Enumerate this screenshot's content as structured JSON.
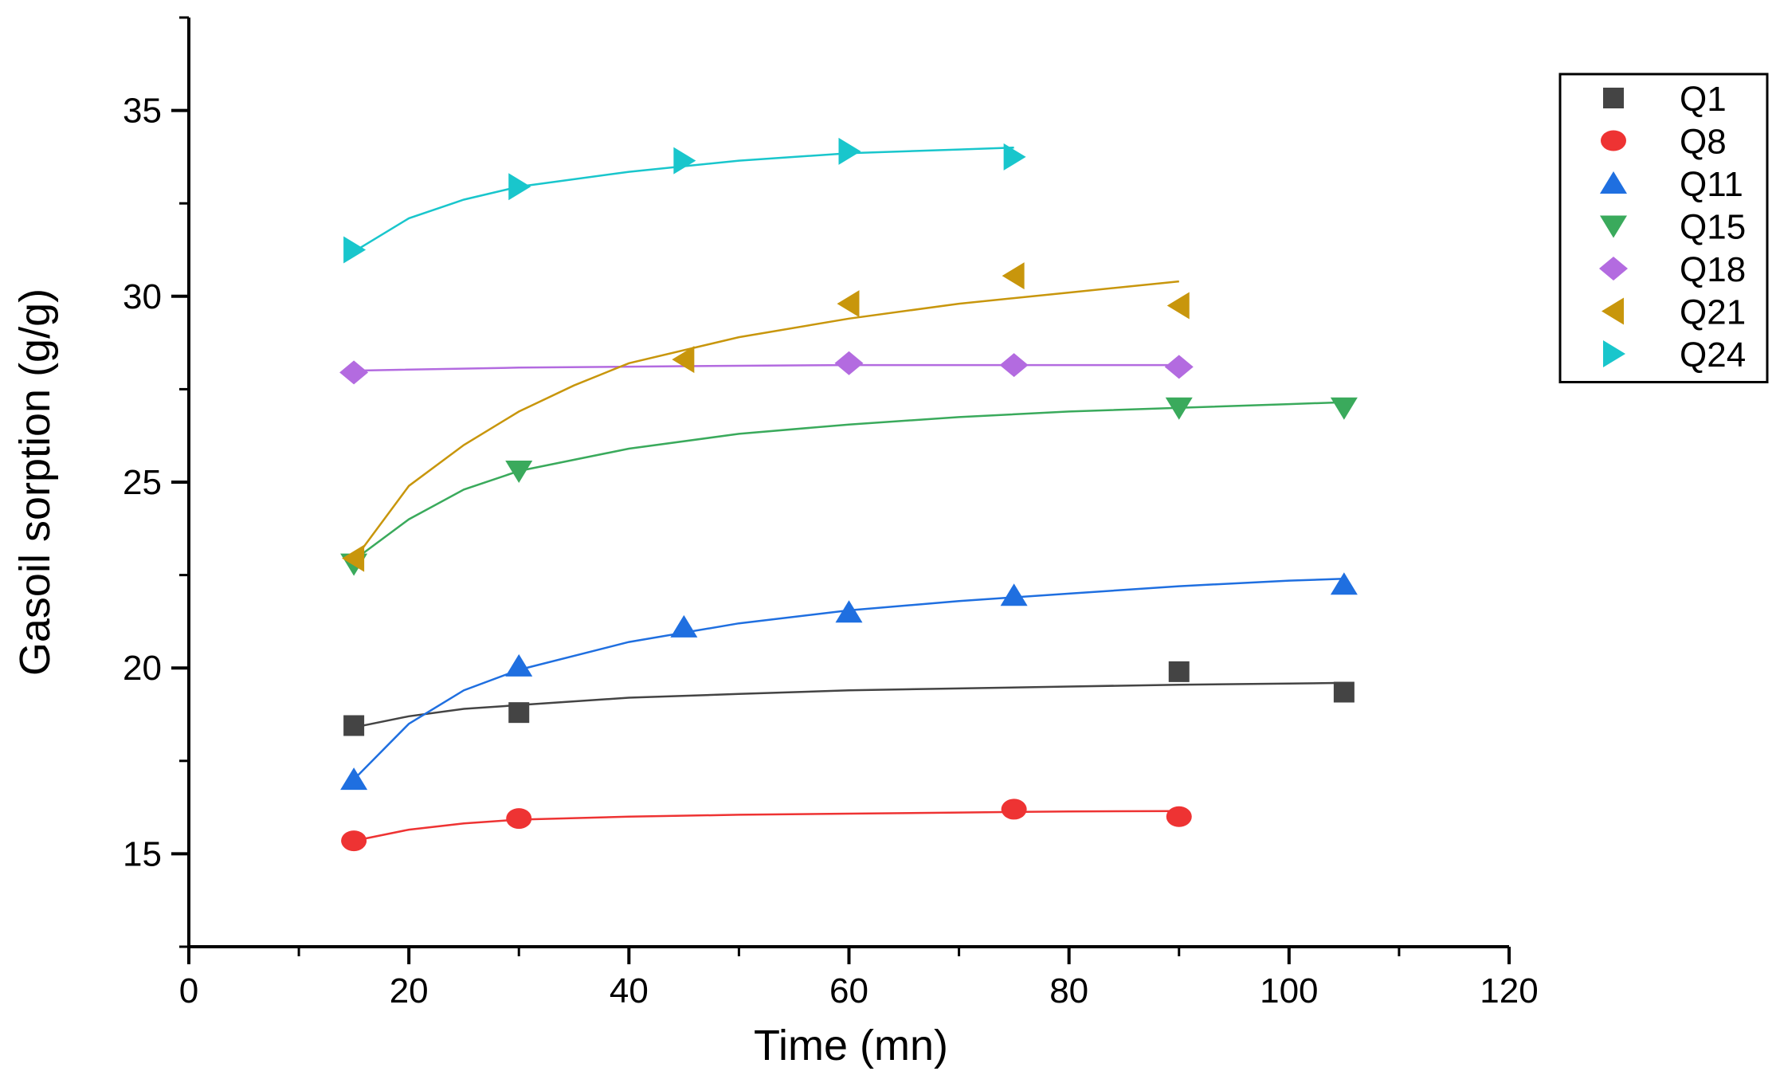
{
  "chart_data": {
    "type": "scatter",
    "title": "",
    "xlabel": "Time (mn)",
    "ylabel": "Gasoil sorption (g/g)",
    "xlim": [
      0,
      120
    ],
    "ylim": [
      12.5,
      37.5
    ],
    "xticks": [
      0,
      20,
      40,
      60,
      80,
      100,
      120
    ],
    "yticks": [
      15,
      20,
      25,
      30,
      35
    ],
    "legend_position": "top-right",
    "series": [
      {
        "name": "Q1",
        "marker": "square",
        "color": "#444444",
        "x": [
          15,
          30,
          90,
          105
        ],
        "y": [
          18.45,
          18.8,
          19.9,
          19.35
        ],
        "fit": {
          "x": [
            15,
            20,
            25,
            30,
            40,
            50,
            60,
            70,
            80,
            90,
            100,
            105
          ],
          "y": [
            18.4,
            18.7,
            18.9,
            19.0,
            19.2,
            19.3,
            19.4,
            19.45,
            19.5,
            19.55,
            19.58,
            19.6
          ]
        }
      },
      {
        "name": "Q8",
        "marker": "circle",
        "color": "#ee3333",
        "x": [
          15,
          30,
          75,
          90
        ],
        "y": [
          15.35,
          15.95,
          16.2,
          16.0
        ],
        "fit": {
          "x": [
            15,
            20,
            25,
            30,
            40,
            50,
            60,
            70,
            80,
            90
          ],
          "y": [
            15.35,
            15.65,
            15.82,
            15.92,
            16.0,
            16.05,
            16.08,
            16.11,
            16.14,
            16.15
          ]
        }
      },
      {
        "name": "Q11",
        "marker": "triangle-up",
        "color": "#1f6fe0",
        "x": [
          15,
          30,
          45,
          60,
          75,
          105
        ],
        "y": [
          17.0,
          20.05,
          21.1,
          21.5,
          21.95,
          22.25
        ],
        "fit": {
          "x": [
            15,
            20,
            25,
            30,
            40,
            50,
            60,
            70,
            80,
            90,
            100,
            105
          ],
          "y": [
            17.0,
            18.5,
            19.4,
            19.95,
            20.7,
            21.2,
            21.55,
            21.8,
            22.0,
            22.2,
            22.35,
            22.4
          ]
        }
      },
      {
        "name": "Q15",
        "marker": "triangle-down",
        "color": "#3aaa5c",
        "x": [
          15,
          30,
          90,
          105
        ],
        "y": [
          22.8,
          25.3,
          27.0,
          27.0
        ],
        "fit": {
          "x": [
            15,
            20,
            25,
            30,
            40,
            50,
            60,
            70,
            80,
            90,
            100,
            105
          ],
          "y": [
            22.9,
            24.0,
            24.8,
            25.3,
            25.9,
            26.3,
            26.55,
            26.75,
            26.9,
            27.0,
            27.1,
            27.15
          ]
        }
      },
      {
        "name": "Q18",
        "marker": "diamond",
        "color": "#b36be0",
        "x": [
          15,
          60,
          75,
          90
        ],
        "y": [
          27.95,
          28.2,
          28.15,
          28.1
        ],
        "fit": {
          "x": [
            15,
            30,
            45,
            60,
            75,
            90
          ],
          "y": [
            28.0,
            28.08,
            28.12,
            28.15,
            28.15,
            28.15
          ]
        }
      },
      {
        "name": "Q21",
        "marker": "triangle-left",
        "color": "#c8960c",
        "x": [
          15,
          45,
          60,
          75,
          90
        ],
        "y": [
          22.95,
          28.3,
          29.8,
          30.55,
          29.75
        ],
        "fit": {
          "x": [
            15,
            20,
            25,
            30,
            35,
            40,
            50,
            60,
            70,
            80,
            90
          ],
          "y": [
            22.9,
            24.9,
            26.0,
            26.9,
            27.6,
            28.2,
            28.9,
            29.4,
            29.8,
            30.1,
            30.4
          ]
        }
      },
      {
        "name": "Q24",
        "marker": "triangle-right",
        "color": "#19c6cc",
        "x": [
          15,
          30,
          45,
          60,
          75
        ],
        "y": [
          31.25,
          32.95,
          33.65,
          33.9,
          33.75
        ],
        "fit": {
          "x": [
            15,
            20,
            25,
            30,
            40,
            50,
            60,
            70,
            75
          ],
          "y": [
            31.2,
            32.1,
            32.6,
            32.95,
            33.35,
            33.65,
            33.85,
            33.95,
            34.0
          ]
        }
      }
    ]
  }
}
